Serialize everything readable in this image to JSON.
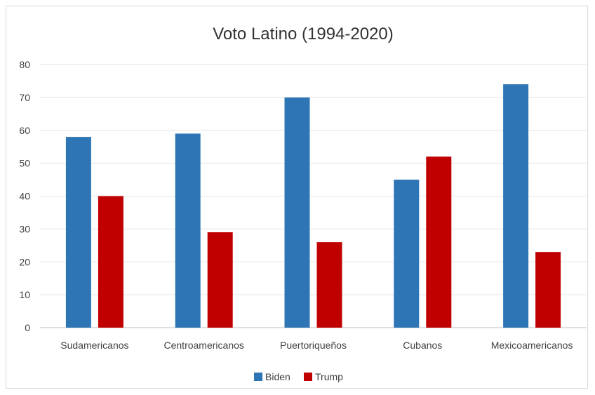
{
  "chart_data": {
    "type": "bar",
    "title": "Voto Latino (1994-2020)",
    "categories": [
      "Sudamericanos",
      "Centroamericanos",
      "Puertoriqueños",
      "Cubanos",
      "Mexicoamericanos"
    ],
    "series": [
      {
        "name": "Biden",
        "color": "#2e75b6",
        "values": [
          58,
          59,
          70,
          45,
          74
        ]
      },
      {
        "name": "Trump",
        "color": "#c00000",
        "values": [
          40,
          29,
          26,
          52,
          23
        ]
      }
    ],
    "ylim": [
      0,
      80
    ],
    "yticks": [
      0,
      10,
      20,
      30,
      40,
      50,
      60,
      70,
      80
    ],
    "grid": true,
    "legend_position": "bottom"
  }
}
